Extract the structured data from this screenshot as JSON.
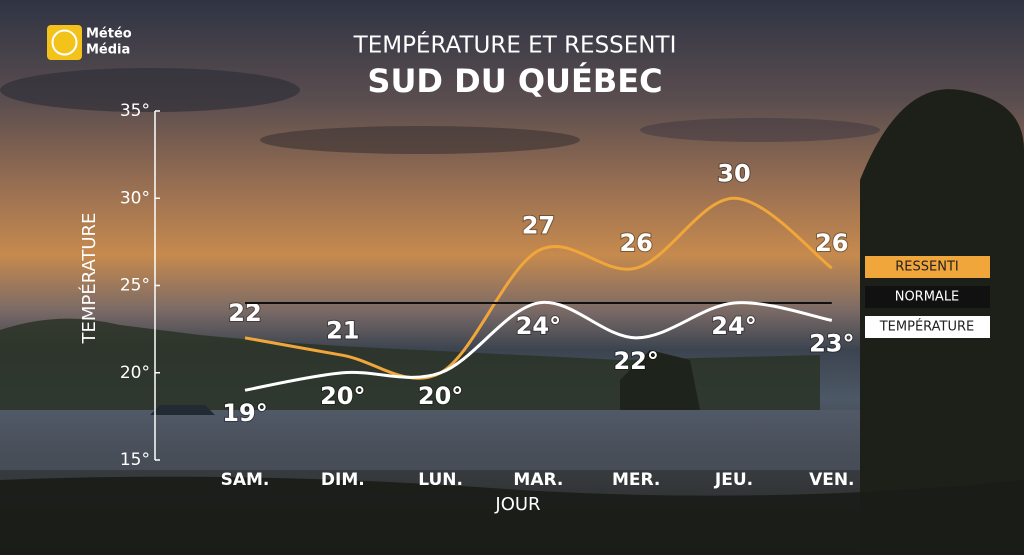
{
  "logo": [
    "Météo",
    "Média"
  ],
  "chart_data": {
    "type": "line",
    "title": "TEMPÉRATURE ET RESSENTI",
    "subtitle": "SUD DU QUÉBEC",
    "x_label": "JOUR",
    "y_label": "TEMPÉRATURE",
    "categories": [
      "SAM.",
      "DIM.",
      "LUN.",
      "MAR.",
      "MER.",
      "JEU.",
      "VEN."
    ],
    "ylim": [
      15,
      35
    ],
    "yticks": [
      {
        "value": 15,
        "label": "15°"
      },
      {
        "value": 20,
        "label": "20°"
      },
      {
        "value": 25,
        "label": "25°"
      },
      {
        "value": 30,
        "label": "30°"
      },
      {
        "value": 35,
        "label": "35°"
      }
    ],
    "legend": "right",
    "series": [
      {
        "name": "RESSENTI",
        "color": "#f0a63a",
        "smooth": true,
        "label_side": "above",
        "values": [
          22,
          21,
          20,
          27,
          26,
          30,
          26
        ],
        "value_labels": [
          "22",
          "21",
          null,
          "27",
          "26",
          "30",
          "26"
        ]
      },
      {
        "name": "NORMALE",
        "color": "#111111",
        "smooth": false,
        "values": [
          24,
          24,
          24,
          24,
          24,
          24,
          24
        ]
      },
      {
        "name": "TEMPÉRATURE",
        "color": "#ffffff",
        "smooth": true,
        "label_side": "below",
        "values": [
          19,
          20,
          20,
          24,
          22,
          24,
          23
        ],
        "value_labels": [
          "19°",
          "20°",
          "20°",
          "24°",
          "22°",
          "24°",
          "23°"
        ]
      }
    ]
  }
}
